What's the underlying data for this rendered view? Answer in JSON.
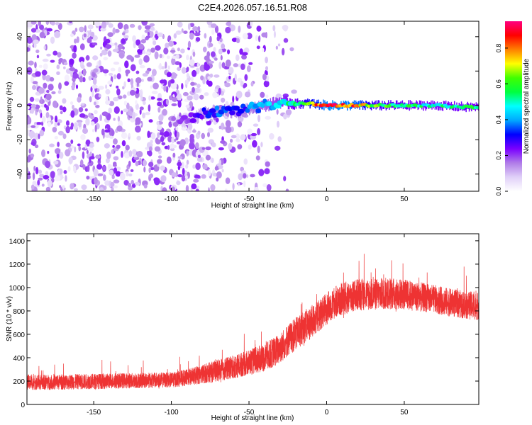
{
  "title": "C2E4.2026.057.16.51.R08",
  "chart_data": [
    {
      "type": "heatmap",
      "title": "C2E4.2026.057.16.51.R08",
      "xlabel": "Height of straight line (km)",
      "ylabel": "Frequency (Hz)",
      "xlim": [
        -193,
        98
      ],
      "ylim": [
        -50,
        49
      ],
      "xticks": [
        -150,
        -100,
        -50,
        0,
        50
      ],
      "yticks": [
        -40,
        -20,
        0,
        20,
        40
      ],
      "colorbar": {
        "label": "Normalized spectral amplitude",
        "range": [
          0,
          0.95
        ],
        "ticks": [
          0.0,
          0.2,
          0.4,
          0.6,
          0.8
        ],
        "colors": [
          "#ffffff",
          "#e0d0f8",
          "#b07ce8",
          "#7a00ff",
          "#0000ff",
          "#00a8ff",
          "#00ffff",
          "#00ff40",
          "#40ff00",
          "#ffff00",
          "#ff8000",
          "#ff0000",
          "#ff0080"
        ]
      },
      "noise_region": {
        "x_range": [
          -193,
          -25
        ],
        "freq_range": [
          -50,
          49
        ],
        "typical_amplitude": 0.05
      },
      "signal_trace": [
        {
          "x": -100,
          "freq": -9,
          "amplitude": 0.15
        },
        {
          "x": -90,
          "freq": -9,
          "amplitude": 0.2
        },
        {
          "x": -78,
          "freq": -4,
          "amplitude": 0.3
        },
        {
          "x": -68,
          "freq": -3,
          "amplitude": 0.35
        },
        {
          "x": -58,
          "freq": -4,
          "amplitude": 0.3
        },
        {
          "x": -50,
          "freq": -2,
          "amplitude": 0.35
        },
        {
          "x": -40,
          "freq": 0,
          "amplitude": 0.4
        },
        {
          "x": -30,
          "freq": 2,
          "amplitude": 0.45
        },
        {
          "x": -20,
          "freq": 1,
          "amplitude": 0.55
        },
        {
          "x": -10,
          "freq": 1,
          "amplitude": 0.7
        },
        {
          "x": 0,
          "freq": 0,
          "amplitude": 0.85
        },
        {
          "x": 10,
          "freq": 0,
          "amplitude": 0.85
        },
        {
          "x": 20,
          "freq": 0,
          "amplitude": 0.8
        },
        {
          "x": 30,
          "freq": 0,
          "amplitude": 0.6
        },
        {
          "x": 50,
          "freq": 0,
          "amplitude": 0.55
        },
        {
          "x": 70,
          "freq": 0,
          "amplitude": 0.5
        },
        {
          "x": 90,
          "freq": -1,
          "amplitude": 0.55
        },
        {
          "x": 98,
          "freq": -1,
          "amplitude": 0.5
        }
      ]
    },
    {
      "type": "line",
      "title": "",
      "xlabel": "Height of straight line (km)",
      "ylabel": "SNR (10 * v/v)",
      "xlim": [
        -193,
        98
      ],
      "ylim": [
        0,
        1460
      ],
      "xticks": [
        -150,
        -100,
        -50,
        0,
        50
      ],
      "yticks": [
        0,
        200,
        400,
        600,
        800,
        1000,
        1200,
        1400
      ],
      "series": [
        {
          "name": "SNR",
          "color": "#ee3333",
          "x": [
            -193,
            -180,
            -160,
            -140,
            -120,
            -100,
            -90,
            -80,
            -70,
            -60,
            -50,
            -40,
            -30,
            -25,
            -20,
            -15,
            -10,
            -5,
            0,
            5,
            10,
            15,
            20,
            30,
            40,
            50,
            60,
            70,
            80,
            90,
            98
          ],
          "mean": [
            190,
            190,
            195,
            200,
            205,
            210,
            230,
            260,
            290,
            320,
            360,
            400,
            480,
            550,
            600,
            660,
            700,
            760,
            820,
            870,
            900,
            920,
            940,
            940,
            950,
            940,
            920,
            900,
            870,
            850,
            840
          ],
          "spread": [
            120,
            120,
            120,
            120,
            120,
            120,
            130,
            150,
            170,
            180,
            200,
            220,
            240,
            250,
            260,
            260,
            260,
            250,
            250,
            250,
            260,
            260,
            250,
            250,
            250,
            240,
            230,
            220,
            220,
            220,
            220
          ]
        }
      ]
    }
  ]
}
